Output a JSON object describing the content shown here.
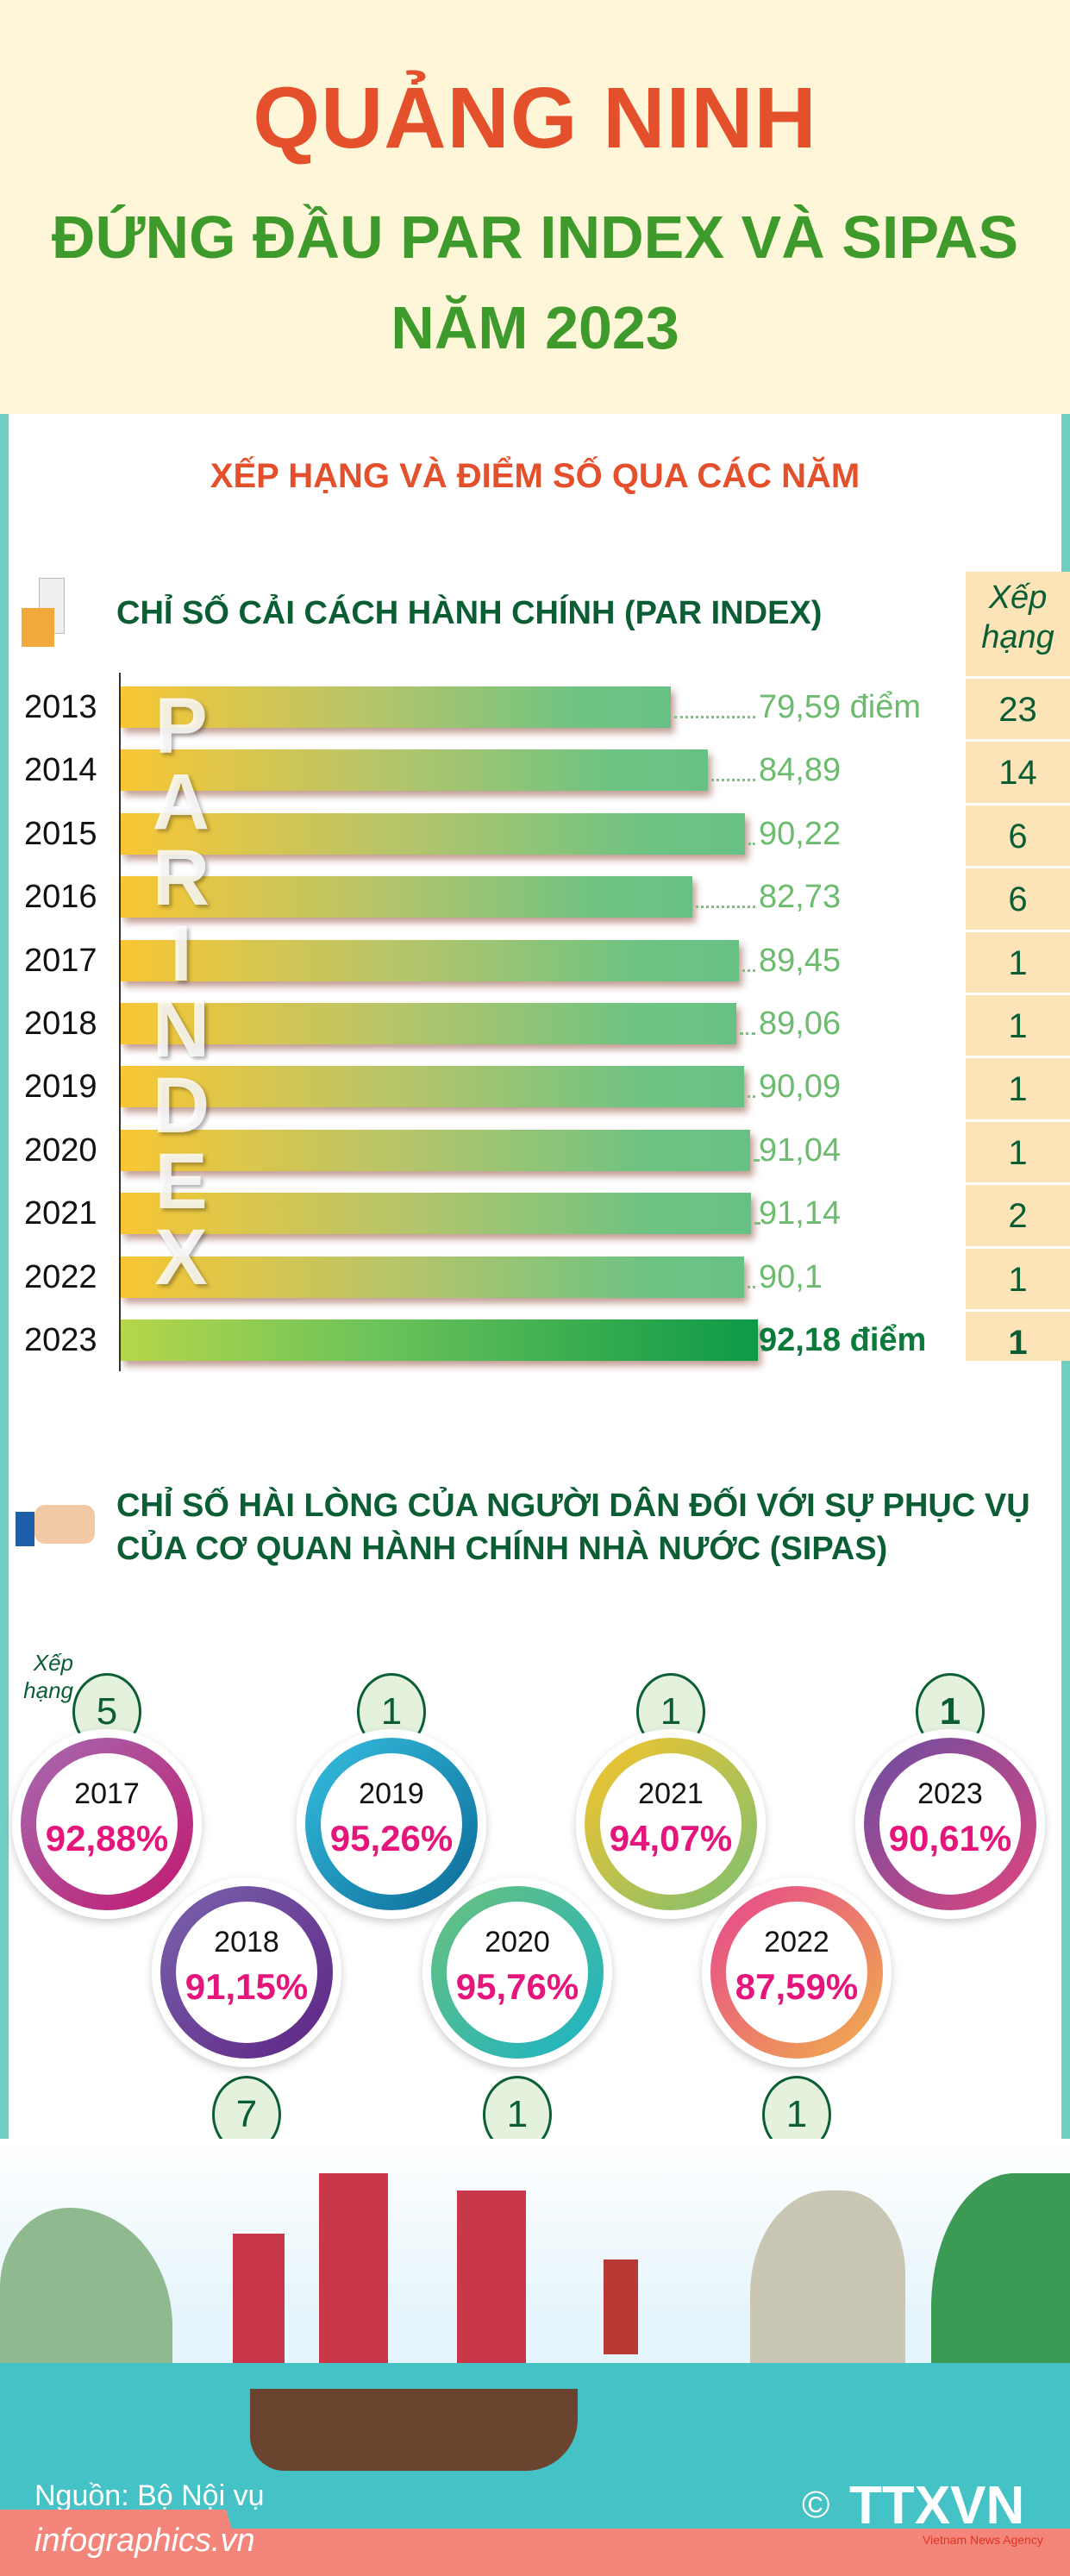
{
  "header": {
    "title": "QUẢNG NINH",
    "subtitle_line1": "ĐỨNG ĐẦU PAR INDEX VÀ SIPAS",
    "subtitle_line2": "NĂM 2023"
  },
  "section_heading": "XẾP HẠNG VÀ ĐIỂM SỐ QUA CÁC NĂM",
  "par": {
    "icon": "documents-folder-icon",
    "title": "CHỈ SỐ CẢI CÁCH HÀNH CHÍNH (PAR INDEX)",
    "rank_header_line1": "Xếp",
    "rank_header_line2": "hạng",
    "watermark": "PARINDEX",
    "rows": [
      {
        "year": "2013",
        "value": 79.59,
        "label": "79,59 điểm",
        "rank": "23"
      },
      {
        "year": "2014",
        "value": 84.89,
        "label": "84,89",
        "rank": "14"
      },
      {
        "year": "2015",
        "value": 90.22,
        "label": "90,22",
        "rank": "6"
      },
      {
        "year": "2016",
        "value": 82.73,
        "label": "82,73",
        "rank": "6"
      },
      {
        "year": "2017",
        "value": 89.45,
        "label": "89,45",
        "rank": "1"
      },
      {
        "year": "2018",
        "value": 89.06,
        "label": "89,06",
        "rank": "1"
      },
      {
        "year": "2019",
        "value": 90.09,
        "label": "90,09",
        "rank": "1"
      },
      {
        "year": "2020",
        "value": 91.04,
        "label": "91,04",
        "rank": "1"
      },
      {
        "year": "2021",
        "value": 91.14,
        "label": "91,14",
        "rank": "2"
      },
      {
        "year": "2022",
        "value": 90.1,
        "label": "90,1",
        "rank": "1"
      },
      {
        "year": "2023",
        "value": 92.18,
        "label": "92,18 điểm",
        "rank": "1"
      }
    ]
  },
  "sipas": {
    "icon": "thumbs-up-icon",
    "title_line1": "CHỈ SỐ HÀI LÒNG CỦA NGƯỜI DÂN ĐỐI VỚI SỰ PHỤC VỤ",
    "title_line2": "CỦA CƠ QUAN HÀNH CHÍNH NHÀ NƯỚC (SIPAS)",
    "rank_label_line1": "Xếp",
    "rank_label_line2": "hạng",
    "items": [
      {
        "year": "2017",
        "percent": "92,88%",
        "rank": "5",
        "colors": [
          "#a56bb0",
          "#c2186f"
        ]
      },
      {
        "year": "2018",
        "percent": "91,15%",
        "rank": "7",
        "colors": [
          "#7a63ad",
          "#5d2484"
        ]
      },
      {
        "year": "2019",
        "percent": "95,26%",
        "rank": "1",
        "colors": [
          "#35bfe0",
          "#0c6a97"
        ]
      },
      {
        "year": "2020",
        "percent": "95,76%",
        "rank": "1",
        "colors": [
          "#6bc17c",
          "#1ab3c6"
        ]
      },
      {
        "year": "2021",
        "percent": "94,07%",
        "rank": "1",
        "colors": [
          "#f7c42c",
          "#7cbf72"
        ]
      },
      {
        "year": "2022",
        "percent": "87,59%",
        "rank": "1",
        "colors": [
          "#e6458f",
          "#f0b04a"
        ]
      },
      {
        "year": "2023",
        "percent": "90,61%",
        "rank": "1",
        "colors": [
          "#6a4ea2",
          "#e0457e"
        ]
      }
    ]
  },
  "footer": {
    "source": "Nguồn: Bộ Nội vụ",
    "site": "infographics.vn",
    "logo": "TTXVN",
    "logo_sub": "Vietnam News Agency",
    "copyright": "©"
  }
}
